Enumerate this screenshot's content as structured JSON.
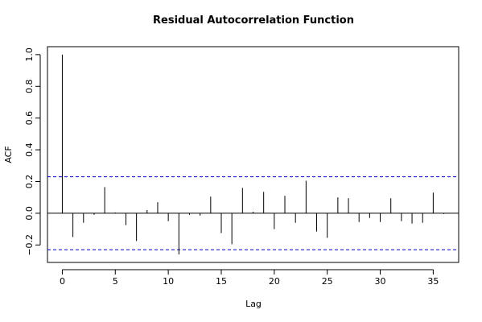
{
  "chart_data": {
    "type": "bar",
    "title": "Residual Autocorrelation Function",
    "xlabel": "Lag",
    "ylabel": "ACF",
    "xlim": [
      -1.4,
      37.4
    ],
    "ylim": [
      -0.31,
      1.05
    ],
    "x_ticks": [
      0,
      5,
      10,
      15,
      20,
      25,
      30,
      35
    ],
    "x_tick_labels": [
      "0",
      "5",
      "10",
      "15",
      "20",
      "25",
      "30",
      "35"
    ],
    "y_ticks": [
      -0.2,
      0.0,
      0.2,
      0.4,
      0.6,
      0.8,
      1.0
    ],
    "y_tick_labels": [
      "−0.2",
      "0.0",
      "0.2",
      "0.4",
      "0.6",
      "0.8",
      "1.0"
    ],
    "confidence_band": [
      0.23,
      -0.23
    ],
    "colors": {
      "spike": "#000000",
      "band": "#0000cc",
      "zero_line": "#000000"
    },
    "lags": [
      0,
      1,
      2,
      3,
      4,
      5,
      6,
      7,
      8,
      9,
      10,
      11,
      12,
      13,
      14,
      15,
      16,
      17,
      18,
      19,
      20,
      21,
      22,
      23,
      24,
      25,
      26,
      27,
      28,
      29,
      30,
      31,
      32,
      33,
      34,
      35,
      36
    ],
    "acf": [
      1.0,
      -0.15,
      -0.06,
      -0.01,
      0.165,
      0.005,
      -0.075,
      -0.175,
      0.02,
      0.07,
      -0.05,
      -0.26,
      -0.01,
      -0.015,
      0.105,
      -0.125,
      -0.195,
      0.16,
      0.01,
      0.135,
      -0.1,
      0.11,
      -0.06,
      0.205,
      -0.115,
      -0.155,
      0.1,
      0.095,
      -0.055,
      -0.03,
      -0.055,
      0.095,
      -0.05,
      -0.065,
      -0.06,
      0.13,
      -0.005
    ]
  }
}
